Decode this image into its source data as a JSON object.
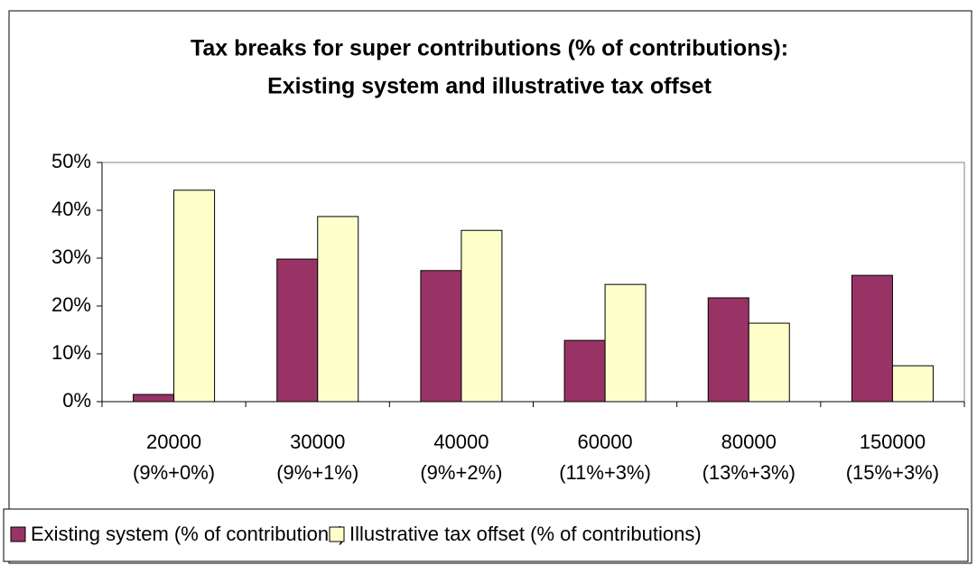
{
  "chart_data": {
    "type": "bar",
    "title": [
      "Tax breaks for super contributions (% of contributions):",
      "Existing system and illustrative tax offset"
    ],
    "categories": [
      [
        "20000",
        "(9%+0%)"
      ],
      [
        "30000",
        "(9%+1%)"
      ],
      [
        "40000",
        "(9%+2%)"
      ],
      [
        "60000",
        "(11%+3%)"
      ],
      [
        "80000",
        "(13%+3%)"
      ],
      [
        "150000",
        "(15%+3%)"
      ]
    ],
    "series": [
      {
        "name": "Existing system (% of contributions)",
        "color": "#993366",
        "values": [
          1.5,
          29.8,
          27.4,
          12.8,
          21.7,
          26.4
        ]
      },
      {
        "name": "Illustrative tax offset (% of contributions)",
        "color": "#FFFFCC",
        "values": [
          44.2,
          38.7,
          35.8,
          24.5,
          16.4,
          7.5
        ]
      }
    ],
    "ylim": [
      0,
      50
    ],
    "yticks": [
      {
        "value": 0,
        "label": "0%"
      },
      {
        "value": 10,
        "label": "10%"
      },
      {
        "value": 20,
        "label": "20%"
      },
      {
        "value": 30,
        "label": "30%"
      },
      {
        "value": 40,
        "label": "40%"
      },
      {
        "value": 50,
        "label": "50%"
      }
    ],
    "legend": "bottom"
  }
}
